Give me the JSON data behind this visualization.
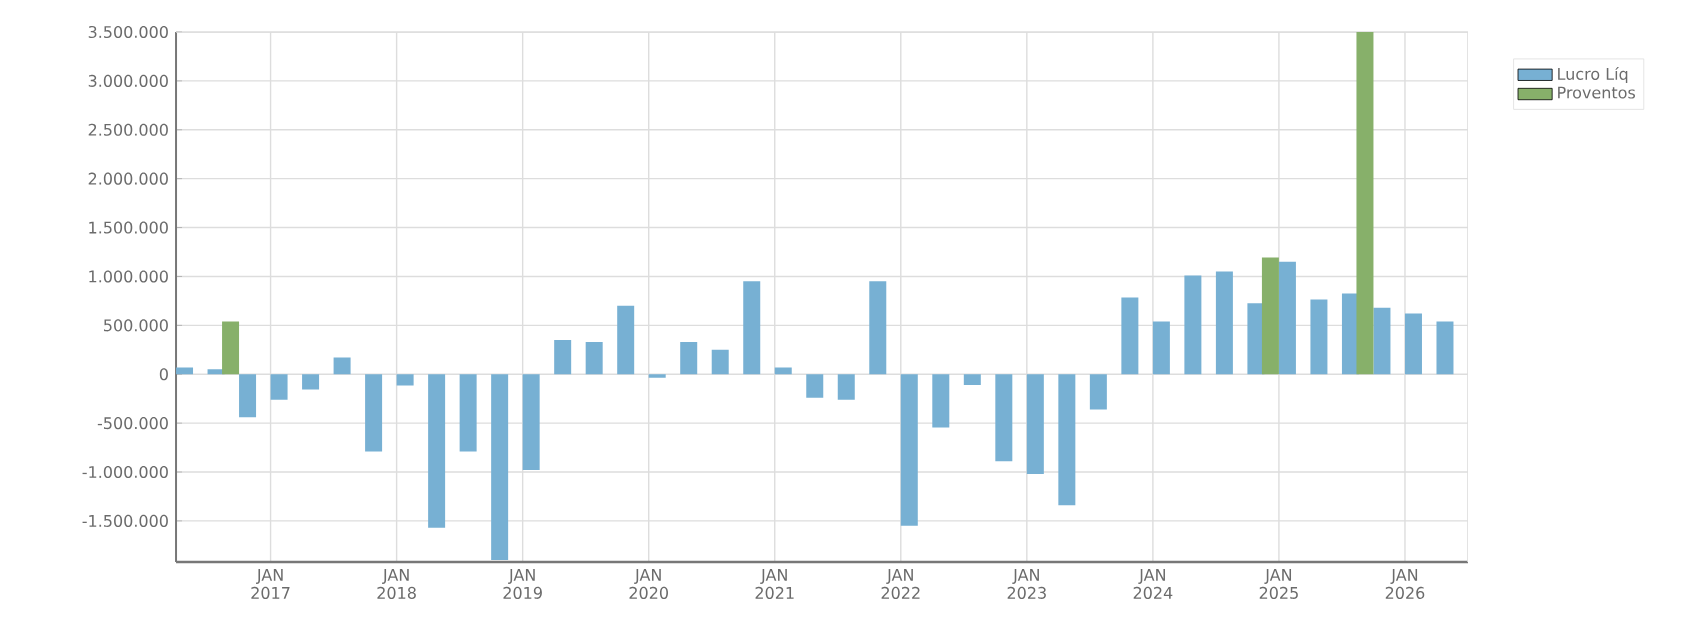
{
  "chart_data": {
    "type": "bar",
    "x": [
      "2016-04",
      "2016-07",
      "2016-10",
      "2017-01",
      "2017-04",
      "2017-07",
      "2017-10",
      "2018-01",
      "2018-04",
      "2018-07",
      "2018-10",
      "2019-01",
      "2019-04",
      "2019-07",
      "2019-10",
      "2020-01",
      "2020-04",
      "2020-07",
      "2020-10",
      "2021-01",
      "2021-04",
      "2021-07",
      "2021-10",
      "2022-01",
      "2022-04",
      "2022-07",
      "2022-10",
      "2023-01",
      "2023-04",
      "2023-07",
      "2023-10",
      "2024-01",
      "2024-04",
      "2024-07",
      "2024-10",
      "2025-01",
      "2025-04",
      "2025-07",
      "2025-10",
      "2026-01",
      "2026-04"
    ],
    "series": [
      {
        "name": "Lucro Líq",
        "color": "#77b0d3",
        "values": [
          70000,
          50000,
          -440000,
          -260000,
          -155000,
          170000,
          -790000,
          -115000,
          -1570000,
          -790000,
          -1900000,
          -980000,
          350000,
          330000,
          700000,
          -35000,
          330000,
          250000,
          950000,
          70000,
          -240000,
          -260000,
          950000,
          -1550000,
          -545000,
          -110000,
          -890000,
          -1020000,
          -1340000,
          -360000,
          785000,
          540000,
          1010000,
          1050000,
          725000,
          1150000,
          765000,
          825000,
          680000,
          620000,
          540000
        ]
      },
      {
        "name": "Proventos",
        "color": "#87b06a",
        "values": [
          null,
          null,
          540000,
          null,
          null,
          null,
          null,
          null,
          null,
          null,
          null,
          null,
          null,
          null,
          null,
          null,
          null,
          null,
          null,
          null,
          null,
          null,
          null,
          null,
          null,
          null,
          null,
          null,
          null,
          null,
          null,
          null,
          null,
          null,
          null,
          1195000,
          null,
          null,
          3500000,
          null,
          null
        ]
      }
    ],
    "xlim": [
      "2016-04",
      "2026-07"
    ],
    "xticks": [
      {
        "value": "2017-01",
        "label": "JAN 2017"
      },
      {
        "value": "2018-01",
        "label": "JAN 2018"
      },
      {
        "value": "2019-01",
        "label": "JAN 2019"
      },
      {
        "value": "2020-01",
        "label": "JAN 2020"
      },
      {
        "value": "2021-01",
        "label": "JAN 2021"
      },
      {
        "value": "2022-01",
        "label": "JAN 2022"
      },
      {
        "value": "2023-01",
        "label": "JAN 2023"
      },
      {
        "value": "2024-01",
        "label": "JAN 2024"
      },
      {
        "value": "2025-01",
        "label": "JAN 2025"
      },
      {
        "value": "2026-01",
        "label": "JAN 2026"
      }
    ],
    "ylim": [
      -1920000,
      3500000
    ],
    "yticks": [
      {
        "value": -1500000,
        "label": "-1.500.000"
      },
      {
        "value": -1000000,
        "label": "-1.000.000"
      },
      {
        "value": -500000,
        "label": "-500.000"
      },
      0,
      {
        "value": 500000,
        "label": "500.000"
      },
      {
        "value": 1000000,
        "label": "1.000.000"
      },
      {
        "value": 1500000,
        "label": "1.500.000"
      },
      {
        "value": 2000000,
        "label": "2.000.000"
      },
      {
        "value": 2500000,
        "label": "2.500.000"
      },
      {
        "value": 3000000,
        "label": "3.000.000"
      },
      {
        "value": 3500000,
        "label": "3.500.000"
      }
    ],
    "grid": true,
    "legend": "top right"
  }
}
